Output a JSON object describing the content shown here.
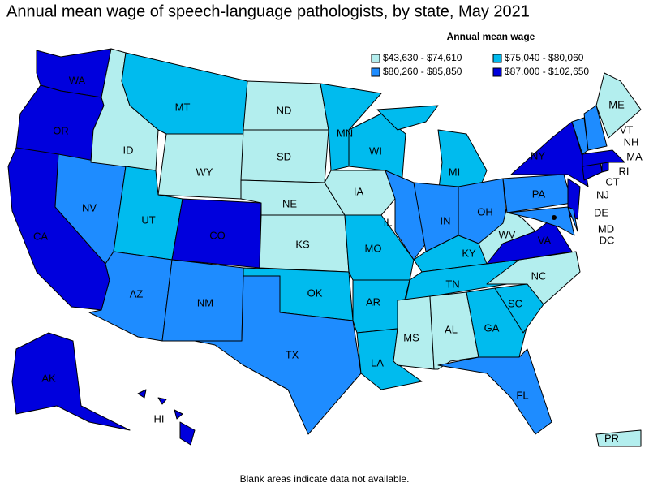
{
  "title": "Annual mean wage of speech-language pathologists, by state, May 2021",
  "legend": {
    "title": "Annual mean wage",
    "classes": [
      {
        "label": "$43,630 - $74,610",
        "color": "#b3eeee"
      },
      {
        "label": "$75,040 - $80,060",
        "color": "#00bbee"
      },
      {
        "label": "$80,260 - $85,850",
        "color": "#1e8cff"
      },
      {
        "label": "$87,000 - $102,650",
        "color": "#0000dd"
      }
    ]
  },
  "states": [
    {
      "abbr": "WA",
      "class": 3
    },
    {
      "abbr": "OR",
      "class": 3
    },
    {
      "abbr": "CA",
      "class": 3
    },
    {
      "abbr": "NV",
      "class": 2
    },
    {
      "abbr": "ID",
      "class": 0
    },
    {
      "abbr": "MT",
      "class": 1
    },
    {
      "abbr": "WY",
      "class": 0
    },
    {
      "abbr": "UT",
      "class": 1
    },
    {
      "abbr": "CO",
      "class": 3
    },
    {
      "abbr": "AZ",
      "class": 2
    },
    {
      "abbr": "NM",
      "class": 2
    },
    {
      "abbr": "ND",
      "class": 0
    },
    {
      "abbr": "SD",
      "class": 0
    },
    {
      "abbr": "NE",
      "class": 0
    },
    {
      "abbr": "KS",
      "class": 0
    },
    {
      "abbr": "OK",
      "class": 1
    },
    {
      "abbr": "TX",
      "class": 2
    },
    {
      "abbr": "MN",
      "class": 1
    },
    {
      "abbr": "IA",
      "class": 0
    },
    {
      "abbr": "MO",
      "class": 1
    },
    {
      "abbr": "AR",
      "class": 1
    },
    {
      "abbr": "LA",
      "class": 1
    },
    {
      "abbr": "WI",
      "class": 1
    },
    {
      "abbr": "IL",
      "class": 2
    },
    {
      "abbr": "MI",
      "class": 1
    },
    {
      "abbr": "IN",
      "class": 2
    },
    {
      "abbr": "OH",
      "class": 2
    },
    {
      "abbr": "KY",
      "class": 1
    },
    {
      "abbr": "TN",
      "class": 1
    },
    {
      "abbr": "MS",
      "class": 0
    },
    {
      "abbr": "AL",
      "class": 0
    },
    {
      "abbr": "GA",
      "class": 1
    },
    {
      "abbr": "SC",
      "class": 1
    },
    {
      "abbr": "NC",
      "class": 0
    },
    {
      "abbr": "FL",
      "class": 2
    },
    {
      "abbr": "WV",
      "class": 0
    },
    {
      "abbr": "VA",
      "class": 3
    },
    {
      "abbr": "PA",
      "class": 2
    },
    {
      "abbr": "NY",
      "class": 3
    },
    {
      "abbr": "NJ",
      "class": 3
    },
    {
      "abbr": "MD",
      "class": 2
    },
    {
      "abbr": "DE",
      "class": 2
    },
    {
      "abbr": "CT",
      "class": 3
    },
    {
      "abbr": "RI",
      "class": 3
    },
    {
      "abbr": "MA",
      "class": 3
    },
    {
      "abbr": "VT",
      "class": 2
    },
    {
      "abbr": "NH",
      "class": 2
    },
    {
      "abbr": "ME",
      "class": 0
    },
    {
      "abbr": "AK",
      "class": 3
    },
    {
      "abbr": "HI",
      "class": 3
    },
    {
      "abbr": "PR",
      "class": 0
    },
    {
      "abbr": "DC",
      "class": 3
    }
  ],
  "footnote": "Blank areas indicate data not available."
}
